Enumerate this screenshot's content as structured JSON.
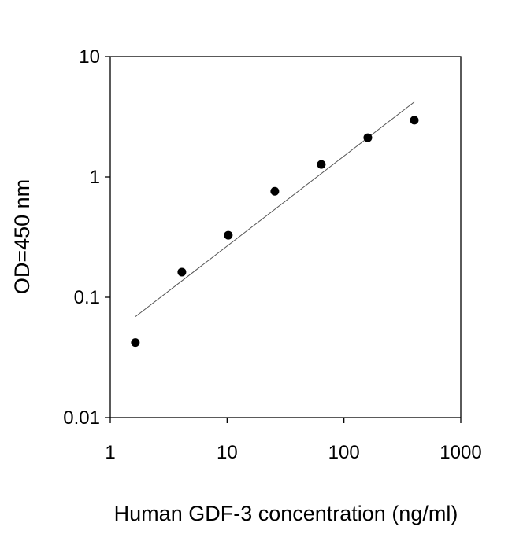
{
  "chart_data": {
    "type": "scatter",
    "title": "",
    "xlabel": "Human GDF-3 concentration (ng/ml)",
    "ylabel": "OD=450 nm",
    "xscale": "log",
    "yscale": "log",
    "xlim": [
      1,
      1000
    ],
    "ylim": [
      0.01,
      10
    ],
    "xticks": [
      "1",
      "10",
      "100",
      "1000"
    ],
    "yticks": [
      "0.01",
      "0.1",
      "1",
      "10"
    ],
    "grid": false,
    "points": {
      "x": [
        1.64,
        4.1,
        10.24,
        25.6,
        64,
        160,
        400
      ],
      "y": [
        0.042,
        0.162,
        0.328,
        0.76,
        1.27,
        2.12,
        2.96
      ]
    },
    "fit_line": {
      "x": [
        1.64,
        400
      ],
      "y": [
        0.069,
        4.2
      ]
    },
    "colors": {
      "points": "#000000",
      "line": "#555555"
    }
  }
}
